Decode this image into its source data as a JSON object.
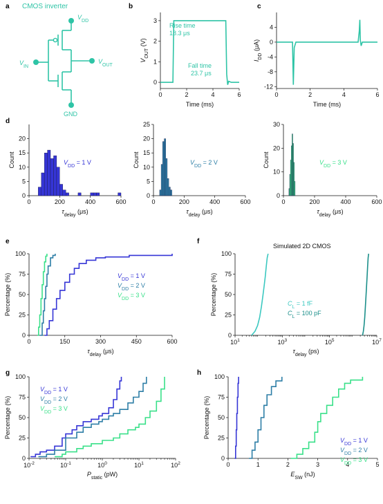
{
  "colors": {
    "teal": "#2ec4a6",
    "blue": "#3535d6",
    "steel": "#2d7ea6",
    "green": "#39e089",
    "darkteal": "#1b8f8a",
    "cyan": "#3bc8c0"
  },
  "panel_labels": [
    "a",
    "b",
    "c",
    "d",
    "e",
    "f",
    "g",
    "h"
  ],
  "chart_data": [
    {
      "id": "a",
      "type": "diagram",
      "title": "CMOS inverter",
      "labels": {
        "vdd": "V_DD",
        "vin": "V_IN",
        "vout": "V_OUT",
        "gnd": "GND"
      }
    },
    {
      "id": "b",
      "type": "line",
      "xlabel": "Time (ms)",
      "ylabel": "V_OUT (V)",
      "xlim": [
        0,
        6
      ],
      "ylim": [
        -0.3,
        3.4
      ],
      "xticks": [
        0,
        2,
        4,
        6
      ],
      "yticks": [
        0,
        1,
        2,
        3
      ],
      "series": [
        {
          "x": [
            0,
            0.95,
            1.02,
            4.98,
            5.05,
            5.12,
            5.2,
            5.4,
            6
          ],
          "y": [
            0,
            0,
            3,
            3,
            0.4,
            -0.12,
            0.05,
            0,
            0
          ]
        }
      ],
      "annotations": [
        "Rise time",
        "18.3 μs",
        "Fall time",
        "23.7 μs"
      ]
    },
    {
      "id": "c",
      "type": "line",
      "xlabel": "Time (ms)",
      "ylabel": "I_DD (μA)",
      "xlim": [
        0,
        6
      ],
      "ylim": [
        -12.5,
        8
      ],
      "xticks": [
        0,
        2,
        4,
        6
      ],
      "yticks": [
        -12,
        -8,
        -4,
        0,
        4
      ],
      "series": [
        {
          "x": [
            0,
            0.95,
            1.0,
            1.05,
            1.15,
            1.5,
            4.85,
            4.92,
            4.95,
            4.98,
            5.03,
            5.1,
            6
          ],
          "y": [
            0,
            0,
            -11.5,
            -1.5,
            0,
            0,
            0,
            3,
            6,
            0.5,
            -1,
            0,
            0
          ]
        }
      ]
    },
    {
      "id": "d1",
      "type": "histogram",
      "xlabel": "τ_delay (μs)",
      "ylabel": "Count",
      "xlim": [
        0,
        600
      ],
      "ylim": [
        0,
        25
      ],
      "xticks": [
        0,
        200,
        400,
        600
      ],
      "yticks": [
        0,
        5,
        10,
        15,
        20
      ],
      "bin_width": 20,
      "bins": [
        [
          60,
          3
        ],
        [
          80,
          8
        ],
        [
          100,
          15
        ],
        [
          120,
          16
        ],
        [
          140,
          13
        ],
        [
          160,
          14
        ],
        [
          180,
          10
        ],
        [
          200,
          4
        ],
        [
          220,
          2
        ],
        [
          240,
          1
        ],
        [
          320,
          1
        ],
        [
          400,
          1
        ],
        [
          420,
          1
        ],
        [
          440,
          1
        ],
        [
          580,
          1
        ]
      ],
      "legend": "V_DD = 1 V"
    },
    {
      "id": "d2",
      "type": "histogram",
      "xlabel": "τ_delay (μs)",
      "ylabel": "Count",
      "xlim": [
        0,
        600
      ],
      "ylim": [
        0,
        25
      ],
      "xticks": [
        0,
        200,
        400,
        600
      ],
      "yticks": [
        0,
        5,
        10,
        15,
        20,
        25
      ],
      "bin_width": 10,
      "bins": [
        [
          40,
          2
        ],
        [
          50,
          11
        ],
        [
          60,
          19
        ],
        [
          70,
          20
        ],
        [
          80,
          13
        ],
        [
          90,
          6
        ],
        [
          100,
          3
        ],
        [
          110,
          2
        ]
      ],
      "legend": "V_DD = 2 V"
    },
    {
      "id": "d3",
      "type": "histogram",
      "xlabel": "τ_delay (μs)",
      "ylabel": "Count",
      "xlim": [
        0,
        600
      ],
      "ylim": [
        0,
        30
      ],
      "xticks": [
        0,
        200,
        400,
        600
      ],
      "yticks": [
        0,
        10,
        20,
        30
      ],
      "bin_width": 5,
      "bins": [
        [
          35,
          3
        ],
        [
          40,
          9
        ],
        [
          45,
          15
        ],
        [
          50,
          21
        ],
        [
          55,
          26
        ],
        [
          60,
          22
        ],
        [
          65,
          14
        ],
        [
          70,
          6
        ]
      ],
      "legend": "V_DD = 3 V"
    },
    {
      "id": "e",
      "type": "line",
      "xlabel": "τ_delay (μs)",
      "ylabel": "Percentage (%)",
      "xlim": [
        0,
        600
      ],
      "ylim": [
        0,
        100
      ],
      "xticks": [
        0,
        150,
        300,
        450,
        600
      ],
      "yticks": [
        0,
        25,
        50,
        75,
        100
      ],
      "series": [
        {
          "name": "V_DD = 1 V",
          "x": [
            65,
            75,
            85,
            100,
            115,
            130,
            150,
            170,
            190,
            210,
            240,
            280,
            320,
            420,
            600
          ],
          "y": [
            0,
            8,
            18,
            32,
            45,
            55,
            65,
            75,
            82,
            88,
            92,
            95,
            96,
            98,
            100
          ]
        },
        {
          "name": "V_DD = 2 V",
          "x": [
            45,
            55,
            60,
            65,
            70,
            75,
            80,
            90,
            100,
            110
          ],
          "y": [
            0,
            15,
            30,
            45,
            60,
            75,
            85,
            95,
            98,
            100
          ]
        },
        {
          "name": "V_DD = 3 V",
          "x": [
            35,
            40,
            45,
            50,
            55,
            60,
            65,
            70,
            75
          ],
          "y": [
            0,
            10,
            25,
            45,
            62,
            78,
            90,
            97,
            100
          ]
        }
      ]
    },
    {
      "id": "f",
      "type": "line",
      "xlabel": "τ_delay (ps)",
      "ylabel": "Percentage (%)",
      "xscale": "log",
      "xlim": [
        10,
        10000000
      ],
      "ylim": [
        0,
        100
      ],
      "xticks": [
        "10^1",
        "10^3",
        "10^5",
        "10^7"
      ],
      "yticks": [
        0,
        25,
        50,
        75,
        100
      ],
      "annotation": "Simulated 2D CMOS",
      "series": [
        {
          "name": "C_L = 1 fF",
          "x": [
            50,
            70,
            90,
            110,
            130,
            150,
            170,
            190,
            210,
            230,
            250
          ],
          "y": [
            0,
            5,
            12,
            22,
            35,
            48,
            60,
            72,
            85,
            95,
            100
          ]
        },
        {
          "name": "C_L = 100 pF",
          "x": [
            2500000,
            2700000,
            2900000,
            3100000,
            3300000,
            3500000,
            3700000,
            3900000,
            4100000,
            4300000,
            4500000
          ],
          "y": [
            0,
            5,
            12,
            22,
            35,
            48,
            60,
            72,
            85,
            95,
            100
          ]
        }
      ]
    },
    {
      "id": "g",
      "type": "line",
      "xlabel": "P_static (pW)",
      "ylabel": "Percentage (%)",
      "xscale": "log",
      "xlim": [
        0.01,
        100
      ],
      "ylim": [
        0,
        100
      ],
      "xticks": [
        "10^-2",
        "10^-1",
        "10^0",
        "10^1",
        "10^2"
      ],
      "yticks": [
        0,
        25,
        50,
        75,
        100
      ],
      "series": [
        {
          "name": "V_DD = 1 V",
          "x": [
            0.011,
            0.015,
            0.02,
            0.03,
            0.05,
            0.08,
            0.1,
            0.15,
            0.2,
            0.3,
            0.5,
            0.8,
            1,
            1.5,
            2,
            2.5,
            3,
            3.3
          ],
          "y": [
            2,
            5,
            8,
            10,
            15,
            25,
            30,
            35,
            40,
            45,
            48,
            52,
            55,
            62,
            72,
            85,
            95,
            100
          ]
        },
        {
          "name": "V_DD = 2 V",
          "x": [
            0.018,
            0.03,
            0.05,
            0.1,
            0.2,
            0.3,
            0.5,
            0.8,
            1,
            1.5,
            2,
            3,
            5,
            7,
            10,
            13,
            16
          ],
          "y": [
            2,
            5,
            10,
            25,
            32,
            38,
            42,
            45,
            48,
            52,
            55,
            60,
            68,
            75,
            82,
            92,
            100
          ]
        },
        {
          "name": "V_DD = 3 V",
          "x": [
            0.05,
            0.08,
            0.1,
            0.2,
            0.3,
            0.5,
            1,
            2,
            3,
            5,
            8,
            10,
            15,
            20,
            30,
            40,
            50
          ],
          "y": [
            2,
            5,
            8,
            12,
            15,
            18,
            22,
            25,
            30,
            35,
            38,
            42,
            50,
            58,
            70,
            85,
            100
          ]
        }
      ]
    },
    {
      "id": "h",
      "type": "line",
      "xlabel": "E_SW (nJ)",
      "ylabel": "Percentage (%)",
      "xlim": [
        0,
        5
      ],
      "ylim": [
        0,
        100
      ],
      "xticks": [
        0,
        1,
        2,
        3,
        4,
        5
      ],
      "yticks": [
        0,
        25,
        50,
        75,
        100
      ],
      "series": [
        {
          "name": "V_DD = 1 V",
          "x": [
            0.22,
            0.25,
            0.27,
            0.29,
            0.31,
            0.33,
            0.35
          ],
          "y": [
            0,
            15,
            35,
            55,
            75,
            92,
            100
          ]
        },
        {
          "name": "V_DD = 2 V",
          "x": [
            0.7,
            0.8,
            0.9,
            1.0,
            1.1,
            1.2,
            1.3,
            1.45,
            1.6,
            1.8
          ],
          "y": [
            0,
            10,
            20,
            35,
            50,
            65,
            78,
            88,
            95,
            100
          ]
        },
        {
          "name": "V_DD = 3 V",
          "x": [
            2.1,
            2.3,
            2.5,
            2.7,
            2.9,
            3.0,
            3.1,
            3.3,
            3.5,
            3.7,
            3.9,
            4.1,
            4.5
          ],
          "y": [
            0,
            5,
            12,
            20,
            32,
            45,
            55,
            65,
            75,
            85,
            92,
            96,
            100
          ]
        }
      ]
    }
  ]
}
